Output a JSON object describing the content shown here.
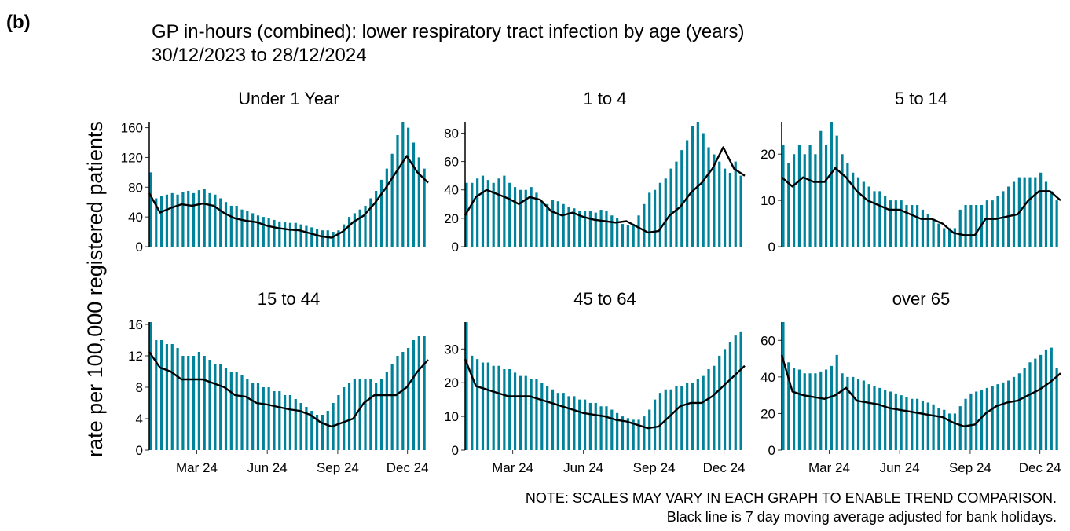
{
  "panel_label": "(b)",
  "title": "GP in-hours (combined): lower respiratory tract infection by age (years)",
  "subtitle": "30/12/2023 to 28/12/2024",
  "ylabel": "rate per 100,000 registered patients",
  "notes": [
    "NOTE: SCALES MAY VARY IN EACH GRAPH TO ENABLE TREND COMPARISON.",
    "Black line is 7 day moving average adjusted for bank holidays."
  ],
  "chart_data": [
    {
      "type": "line",
      "title": "Under 1 Year",
      "xlim": [
        0,
        364
      ],
      "ylim": [
        0,
        168
      ],
      "yticks": [
        0,
        40,
        80,
        120,
        160
      ],
      "series": [
        {
          "color": "#00829a",
          "x": [
            2,
            9,
            16,
            23,
            30,
            37,
            44,
            51,
            58,
            65,
            72,
            79,
            86,
            93,
            100,
            107,
            114,
            121,
            128,
            135,
            142,
            149,
            156,
            163,
            170,
            177,
            184,
            191,
            198,
            205,
            212,
            219,
            226,
            233,
            240,
            247,
            254,
            261,
            268,
            275,
            282,
            289,
            296,
            303,
            310,
            317,
            324,
            331,
            338,
            345,
            352,
            359
          ],
          "values": [
            100,
            65,
            68,
            70,
            72,
            70,
            74,
            75,
            72,
            76,
            78,
            72,
            70,
            65,
            60,
            55,
            55,
            50,
            48,
            45,
            42,
            40,
            38,
            36,
            34,
            33,
            32,
            32,
            30,
            28,
            26,
            24,
            22,
            22,
            20,
            22,
            30,
            40,
            45,
            50,
            55,
            65,
            75,
            90,
            105,
            125,
            150,
            168,
            160,
            140,
            120,
            105
          ]
        },
        {
          "color": "#000000",
          "x": [
            0,
            14,
            28,
            42,
            56,
            70,
            84,
            98,
            112,
            126,
            140,
            154,
            168,
            182,
            196,
            210,
            224,
            238,
            252,
            266,
            280,
            294,
            308,
            322,
            336,
            350,
            364
          ],
          "values": [
            72,
            46,
            52,
            57,
            55,
            58,
            55,
            45,
            38,
            35,
            33,
            28,
            25,
            23,
            22,
            18,
            14,
            12,
            20,
            33,
            42,
            58,
            78,
            100,
            122,
            100,
            86
          ]
        }
      ]
    },
    {
      "type": "line",
      "title": "1 to 4",
      "xlim": [
        0,
        364
      ],
      "ylim": [
        0,
        88
      ],
      "yticks": [
        0,
        20,
        40,
        60,
        80
      ],
      "series": [
        {
          "color": "#00829a",
          "x": [
            2,
            9,
            16,
            23,
            30,
            37,
            44,
            51,
            58,
            65,
            72,
            79,
            86,
            93,
            100,
            107,
            114,
            121,
            128,
            135,
            142,
            149,
            156,
            163,
            170,
            177,
            184,
            191,
            198,
            205,
            212,
            219,
            226,
            233,
            240,
            247,
            254,
            261,
            268,
            275,
            282,
            289,
            296,
            303,
            310,
            317,
            324,
            331,
            338,
            345,
            352,
            359
          ],
          "values": [
            45,
            45,
            48,
            50,
            47,
            45,
            48,
            50,
            45,
            42,
            40,
            40,
            42,
            38,
            32,
            30,
            33,
            32,
            30,
            28,
            27,
            25,
            25,
            25,
            24,
            26,
            25,
            22,
            20,
            16,
            15,
            16,
            22,
            30,
            38,
            40,
            45,
            48,
            55,
            60,
            68,
            75,
            85,
            88,
            80,
            70,
            65,
            60,
            55,
            52,
            60,
            50
          ]
        },
        {
          "color": "#000000",
          "x": [
            0,
            14,
            28,
            42,
            56,
            70,
            84,
            98,
            112,
            126,
            140,
            154,
            168,
            182,
            196,
            210,
            224,
            238,
            252,
            266,
            280,
            294,
            308,
            322,
            336,
            350,
            364
          ],
          "values": [
            22,
            35,
            40,
            37,
            34,
            30,
            35,
            33,
            25,
            22,
            24,
            21,
            19,
            18,
            17,
            18,
            14,
            10,
            11,
            22,
            28,
            38,
            45,
            55,
            70,
            55,
            50
          ]
        }
      ]
    },
    {
      "type": "line",
      "title": "5 to 14",
      "xlim": [
        0,
        364
      ],
      "ylim": [
        0,
        27
      ],
      "yticks": [
        0,
        10,
        20
      ],
      "series": [
        {
          "color": "#00829a",
          "x": [
            2,
            9,
            16,
            23,
            30,
            37,
            44,
            51,
            58,
            65,
            72,
            79,
            86,
            93,
            100,
            107,
            114,
            121,
            128,
            135,
            142,
            149,
            156,
            163,
            170,
            177,
            184,
            191,
            198,
            205,
            212,
            219,
            226,
            233,
            240,
            247,
            254,
            261,
            268,
            275,
            282,
            289,
            296,
            303,
            310,
            317,
            324,
            331,
            338,
            345,
            352,
            359
          ],
          "values": [
            22,
            18,
            20,
            22,
            20,
            22,
            20,
            25,
            22,
            27,
            24,
            20,
            18,
            16,
            15,
            14,
            13,
            12,
            12,
            11,
            10,
            10,
            10,
            9,
            9,
            9,
            8,
            7,
            6,
            5,
            4,
            4,
            4,
            8,
            9,
            9,
            9,
            9,
            10,
            10,
            11,
            12,
            13,
            14,
            15,
            15,
            15,
            15,
            16,
            14,
            12,
            10
          ]
        },
        {
          "color": "#000000",
          "x": [
            0,
            14,
            28,
            42,
            56,
            70,
            84,
            98,
            112,
            126,
            140,
            154,
            168,
            182,
            196,
            210,
            224,
            238,
            252,
            266,
            280,
            294,
            308,
            322,
            336,
            350,
            364
          ],
          "values": [
            15,
            13,
            15,
            14,
            14,
            17,
            15,
            12,
            10,
            9,
            8,
            8,
            7,
            6,
            6,
            5,
            3,
            2.5,
            2.5,
            6,
            6,
            6.5,
            7,
            10,
            12,
            12,
            10
          ]
        }
      ]
    },
    {
      "type": "line",
      "title": "15 to 44",
      "xlim": [
        0,
        364
      ],
      "ylim": [
        0,
        16.3
      ],
      "yticks": [
        0,
        4,
        8,
        12,
        16
      ],
      "xticks": [
        {
          "value": 62,
          "label": "Mar 24"
        },
        {
          "value": 154,
          "label": "Jun 24"
        },
        {
          "value": 246,
          "label": "Sep 24"
        },
        {
          "value": 337,
          "label": "Dec 24"
        }
      ],
      "series": [
        {
          "color": "#00829a",
          "x": [
            2,
            9,
            16,
            23,
            30,
            37,
            44,
            51,
            58,
            65,
            72,
            79,
            86,
            93,
            100,
            107,
            114,
            121,
            128,
            135,
            142,
            149,
            156,
            163,
            170,
            177,
            184,
            191,
            198,
            205,
            212,
            219,
            226,
            233,
            240,
            247,
            254,
            261,
            268,
            275,
            282,
            289,
            296,
            303,
            310,
            317,
            324,
            331,
            338,
            345,
            352,
            359
          ],
          "values": [
            16.3,
            14,
            14,
            13.5,
            13.5,
            13,
            12,
            12,
            12,
            12.5,
            12,
            11.5,
            11,
            11,
            10.5,
            10,
            10,
            9.5,
            9,
            8.5,
            8.5,
            8,
            8,
            7.5,
            7.5,
            7,
            7,
            6.5,
            6,
            5.5,
            5,
            4.5,
            4.5,
            5,
            6,
            7,
            8,
            8.5,
            9,
            9,
            9,
            9,
            8.5,
            9,
            10,
            11,
            12,
            12.5,
            13,
            14,
            14.5,
            14.5
          ]
        },
        {
          "color": "#000000",
          "x": [
            0,
            14,
            28,
            42,
            56,
            70,
            84,
            98,
            112,
            126,
            140,
            154,
            168,
            182,
            196,
            210,
            224,
            238,
            252,
            266,
            280,
            294,
            308,
            322,
            336,
            350,
            364
          ],
          "values": [
            12.5,
            10.5,
            10,
            9,
            9,
            9,
            8.5,
            8,
            7,
            6.8,
            6,
            5.8,
            5.5,
            5.2,
            5,
            4.5,
            3.5,
            3,
            3.5,
            4,
            6,
            7,
            7,
            7,
            8,
            10,
            11.5
          ]
        }
      ]
    },
    {
      "type": "line",
      "title": "45 to 64",
      "xlim": [
        0,
        364
      ],
      "ylim": [
        0,
        38
      ],
      "yticks": [
        0,
        10,
        20,
        30
      ],
      "xticks": [
        {
          "value": 62,
          "label": "Mar 24"
        },
        {
          "value": 154,
          "label": "Jun 24"
        },
        {
          "value": 246,
          "label": "Sep 24"
        },
        {
          "value": 337,
          "label": "Dec 24"
        }
      ],
      "series": [
        {
          "color": "#00829a",
          "x": [
            2,
            9,
            16,
            23,
            30,
            37,
            44,
            51,
            58,
            65,
            72,
            79,
            86,
            93,
            100,
            107,
            114,
            121,
            128,
            135,
            142,
            149,
            156,
            163,
            170,
            177,
            184,
            191,
            198,
            205,
            212,
            219,
            226,
            233,
            240,
            247,
            254,
            261,
            268,
            275,
            282,
            289,
            296,
            303,
            310,
            317,
            324,
            331,
            338,
            345,
            352,
            359
          ],
          "values": [
            38,
            28,
            27,
            26,
            26,
            25,
            25,
            24,
            24,
            23,
            22,
            22,
            21,
            21,
            20,
            19,
            18,
            17,
            17,
            16,
            16,
            15,
            15,
            14,
            14,
            13,
            13,
            12,
            11,
            10,
            9.5,
            9,
            9,
            10,
            12,
            15,
            17,
            18,
            18,
            19,
            19,
            20,
            20,
            21,
            22,
            24,
            25,
            28,
            30,
            32,
            34,
            35
          ]
        },
        {
          "color": "#000000",
          "x": [
            0,
            14,
            28,
            42,
            56,
            70,
            84,
            98,
            112,
            126,
            140,
            154,
            168,
            182,
            196,
            210,
            224,
            238,
            252,
            266,
            280,
            294,
            308,
            322,
            336,
            350,
            364
          ],
          "values": [
            27,
            19,
            18,
            17,
            16,
            16,
            16,
            15,
            14,
            13,
            12,
            11,
            10.5,
            10,
            9,
            8.5,
            7.5,
            6.5,
            7,
            10,
            13,
            14,
            14,
            16,
            19,
            22,
            25
          ]
        }
      ]
    },
    {
      "type": "line",
      "title": "over 65",
      "xlim": [
        0,
        364
      ],
      "ylim": [
        0,
        70
      ],
      "yticks": [
        0,
        20,
        40,
        60
      ],
      "xticks": [
        {
          "value": 62,
          "label": "Mar 24"
        },
        {
          "value": 154,
          "label": "Jun 24"
        },
        {
          "value": 246,
          "label": "Sep 24"
        },
        {
          "value": 337,
          "label": "Dec 24"
        }
      ],
      "series": [
        {
          "color": "#00829a",
          "x": [
            2,
            9,
            16,
            23,
            30,
            37,
            44,
            51,
            58,
            65,
            72,
            79,
            86,
            93,
            100,
            107,
            114,
            121,
            128,
            135,
            142,
            149,
            156,
            163,
            170,
            177,
            184,
            191,
            198,
            205,
            212,
            219,
            226,
            233,
            240,
            247,
            254,
            261,
            268,
            275,
            282,
            289,
            296,
            303,
            310,
            317,
            324,
            331,
            338,
            345,
            352,
            359
          ],
          "values": [
            70,
            48,
            45,
            44,
            42,
            42,
            42,
            43,
            44,
            46,
            52,
            42,
            40,
            40,
            39,
            38,
            36,
            35,
            34,
            33,
            32,
            31,
            30,
            29,
            28,
            28,
            27,
            26,
            25,
            23,
            22,
            20,
            20,
            24,
            28,
            31,
            32,
            33,
            34,
            35,
            36,
            37,
            38,
            40,
            42,
            45,
            48,
            50,
            52,
            55,
            56,
            45
          ]
        },
        {
          "color": "#000000",
          "x": [
            0,
            14,
            28,
            42,
            56,
            70,
            84,
            98,
            112,
            126,
            140,
            154,
            168,
            182,
            196,
            210,
            224,
            238,
            252,
            266,
            280,
            294,
            308,
            322,
            336,
            350,
            364
          ],
          "values": [
            52,
            32,
            30,
            29,
            28,
            30,
            34,
            27,
            26,
            25,
            23,
            22,
            21,
            20,
            19,
            18,
            15,
            13,
            14,
            20,
            24,
            26,
            27,
            30,
            33,
            37,
            42
          ]
        }
      ]
    }
  ]
}
